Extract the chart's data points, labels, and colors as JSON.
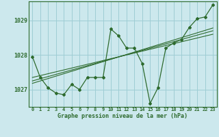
{
  "title": "Graphe pression niveau de la mer (hPa)",
  "background_color": "#cce8ed",
  "grid_color": "#9ecdd4",
  "line_color": "#2d6a2d",
  "xlim": [
    -0.5,
    23.5
  ],
  "ylim": [
    1026.5,
    1029.55
  ],
  "yticks": [
    1027,
    1028,
    1029
  ],
  "xtick_labels": [
    "0",
    "1",
    "2",
    "3",
    "4",
    "5",
    "6",
    "7",
    "8",
    "9",
    "10",
    "11",
    "12",
    "13",
    "14",
    "15",
    "16",
    "17",
    "18",
    "19",
    "20",
    "21",
    "22",
    "23"
  ],
  "series1": {
    "x": [
      0,
      1,
      2,
      3,
      4,
      5,
      6,
      7,
      8,
      9,
      10,
      11,
      12,
      13,
      14,
      15,
      16,
      17,
      18,
      19,
      20,
      21,
      22,
      23
    ],
    "y": [
      1027.95,
      1027.35,
      1027.05,
      1026.9,
      1026.85,
      1027.15,
      1027.0,
      1027.35,
      1027.35,
      1027.35,
      1028.75,
      1028.55,
      1028.2,
      1028.2,
      1027.75,
      1026.6,
      1027.05,
      1028.2,
      1028.35,
      1028.45,
      1028.8,
      1029.05,
      1029.1,
      1029.45
    ]
  },
  "series2_linear1": {
    "x": [
      0,
      23
    ],
    "y": [
      1027.35,
      1028.6
    ]
  },
  "series2_linear2": {
    "x": [
      0,
      23
    ],
    "y": [
      1027.25,
      1028.7
    ]
  },
  "series2_linear3": {
    "x": [
      0,
      23
    ],
    "y": [
      1027.18,
      1028.78
    ]
  }
}
